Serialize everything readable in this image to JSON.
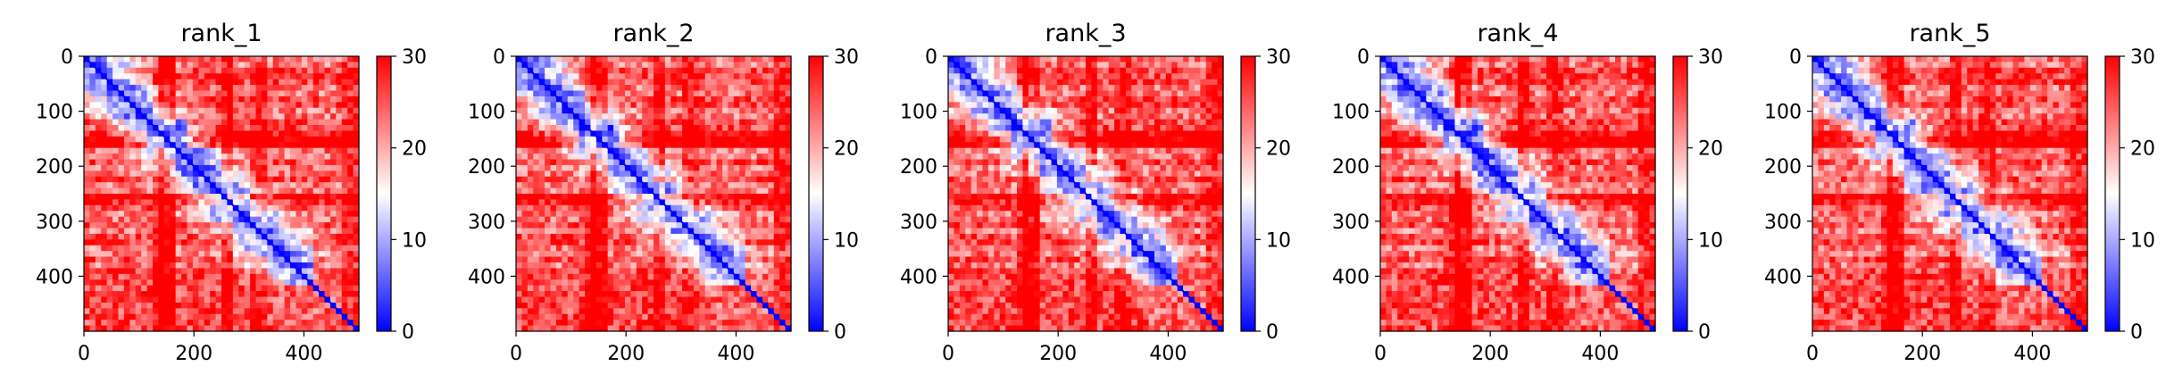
{
  "figure": {
    "background": "#ffffff"
  },
  "colormap": {
    "name": "bwr",
    "low": "#0000ff",
    "mid": "#ffffff",
    "high": "#ff0000"
  },
  "chart_data": [
    {
      "type": "heatmap",
      "title": "rank_1",
      "xlabel": "",
      "ylabel": "",
      "xlim": [
        0,
        500
      ],
      "ylim": [
        500,
        0
      ],
      "x_ticks": [
        0,
        200,
        400
      ],
      "y_ticks": [
        0,
        100,
        200,
        300,
        400
      ],
      "colorbar": {
        "range": [
          0,
          30
        ],
        "ticks": [
          0,
          10,
          20,
          30
        ]
      },
      "grid": false
    },
    {
      "type": "heatmap",
      "title": "rank_2",
      "xlabel": "",
      "ylabel": "",
      "xlim": [
        0,
        500
      ],
      "ylim": [
        500,
        0
      ],
      "x_ticks": [
        0,
        200,
        400
      ],
      "y_ticks": [
        0,
        100,
        200,
        300,
        400
      ],
      "colorbar": {
        "range": [
          0,
          30
        ],
        "ticks": [
          0,
          10,
          20,
          30
        ]
      },
      "grid": false
    },
    {
      "type": "heatmap",
      "title": "rank_3",
      "xlabel": "",
      "ylabel": "",
      "xlim": [
        0,
        500
      ],
      "ylim": [
        500,
        0
      ],
      "x_ticks": [
        0,
        200,
        400
      ],
      "y_ticks": [
        0,
        100,
        200,
        300,
        400
      ],
      "colorbar": {
        "range": [
          0,
          30
        ],
        "ticks": [
          0,
          10,
          20,
          30
        ]
      },
      "grid": false
    },
    {
      "type": "heatmap",
      "title": "rank_4",
      "xlabel": "",
      "ylabel": "",
      "xlim": [
        0,
        500
      ],
      "ylim": [
        500,
        0
      ],
      "x_ticks": [
        0,
        200,
        400
      ],
      "y_ticks": [
        0,
        100,
        200,
        300,
        400
      ],
      "colorbar": {
        "range": [
          0,
          30
        ],
        "ticks": [
          0,
          10,
          20,
          30
        ]
      },
      "grid": false
    },
    {
      "type": "heatmap",
      "title": "rank_5",
      "xlabel": "",
      "ylabel": "",
      "xlim": [
        0,
        500
      ],
      "ylim": [
        500,
        0
      ],
      "x_ticks": [
        0,
        200,
        400
      ],
      "y_ticks": [
        0,
        100,
        200,
        300,
        400
      ],
      "colorbar": {
        "range": [
          0,
          30
        ],
        "ticks": [
          0,
          10,
          20,
          30
        ]
      },
      "grid": false
    }
  ]
}
